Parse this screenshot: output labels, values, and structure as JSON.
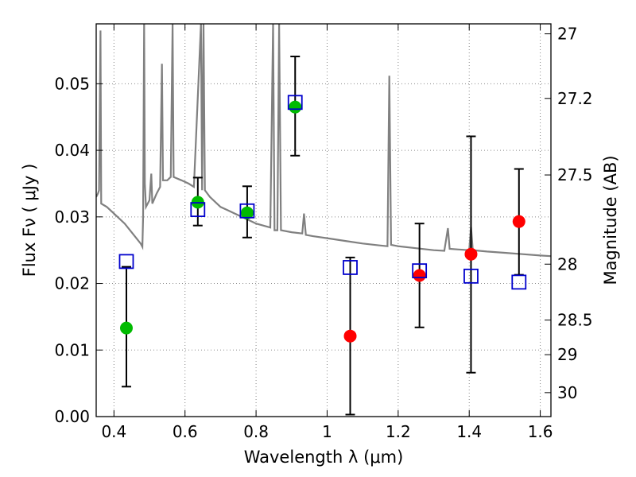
{
  "chart_data": {
    "type": "scatter",
    "title": "",
    "xlabel": "Wavelength  λ (μm)",
    "ylabel": "Flux  Fν  ( μJy )",
    "ylabel_right": "Magnitude (AB)",
    "xlim": [
      0.35,
      1.63
    ],
    "ylim": [
      0.0,
      0.059
    ],
    "grid": true,
    "x_ticks": [
      0.4,
      0.6,
      0.8,
      1.0,
      1.2,
      1.4,
      1.6
    ],
    "x_tick_labels": [
      "0.4",
      "0.6",
      "0.8",
      "1",
      "1.2",
      "1.4",
      "1.6"
    ],
    "y_ticks": [
      0.0,
      0.01,
      0.02,
      0.03,
      0.04,
      0.05
    ],
    "y_tick_labels": [
      "0.00",
      "0.01",
      "0.02",
      "0.03",
      "0.04",
      "0.05"
    ],
    "right_ticks": [
      {
        "label": "27",
        "flux": 0.0575
      },
      {
        "label": "27.2",
        "flux": 0.0478
      },
      {
        "label": "27.5",
        "flux": 0.0363
      },
      {
        "label": "28",
        "flux": 0.0229
      },
      {
        "label": "28.5",
        "flux": 0.0145
      },
      {
        "label": "29",
        "flux": 0.0093
      },
      {
        "label": "30",
        "flux": 0.0036
      }
    ],
    "series": [
      {
        "marker": "circle",
        "color": "#00bb00",
        "points": [
          {
            "x": 0.435,
            "y": 0.0133,
            "err_low": 0.0045,
            "err_high": 0.0225
          },
          {
            "x": 0.636,
            "y": 0.0322,
            "err_low": 0.0287,
            "err_high": 0.0359
          },
          {
            "x": 0.775,
            "y": 0.0306,
            "err_low": 0.0269,
            "err_high": 0.0346
          },
          {
            "x": 0.91,
            "y": 0.0465,
            "err_low": 0.0392,
            "err_high": 0.0541
          }
        ]
      },
      {
        "marker": "circle",
        "color": "#ff0000",
        "points": [
          {
            "x": 1.065,
            "y": 0.0121,
            "err_low": 0.0003,
            "err_high": 0.0239
          },
          {
            "x": 1.26,
            "y": 0.0212,
            "err_low": 0.0134,
            "err_high": 0.029
          },
          {
            "x": 1.405,
            "y": 0.0244,
            "err_low": 0.0066,
            "err_high": 0.0421
          },
          {
            "x": 1.54,
            "y": 0.0293,
            "err_low": 0.0213,
            "err_high": 0.0372
          }
        ]
      },
      {
        "marker": "open-square",
        "color": "#0000cc",
        "points": [
          {
            "x": 0.435,
            "y": 0.0233
          },
          {
            "x": 0.636,
            "y": 0.0311
          },
          {
            "x": 0.775,
            "y": 0.0309
          },
          {
            "x": 0.91,
            "y": 0.0472
          },
          {
            "x": 1.065,
            "y": 0.0224
          },
          {
            "x": 1.26,
            "y": 0.0219
          },
          {
            "x": 1.405,
            "y": 0.0211
          },
          {
            "x": 1.54,
            "y": 0.0202
          }
        ]
      }
    ],
    "spectrum": {
      "color": "#808080",
      "points": [
        [
          0.35,
          0.033
        ],
        [
          0.355,
          0.0335
        ],
        [
          0.358,
          0.034
        ],
        [
          0.362,
          0.058
        ],
        [
          0.364,
          0.032
        ],
        [
          0.38,
          0.0315
        ],
        [
          0.4,
          0.0305
        ],
        [
          0.43,
          0.029
        ],
        [
          0.46,
          0.027
        ],
        [
          0.475,
          0.026
        ],
        [
          0.48,
          0.0255
        ],
        [
          0.482,
          0.03
        ],
        [
          0.485,
          0.059
        ],
        [
          0.487,
          0.035
        ],
        [
          0.49,
          0.0315
        ],
        [
          0.5,
          0.0325
        ],
        [
          0.505,
          0.0365
        ],
        [
          0.508,
          0.032
        ],
        [
          0.52,
          0.0335
        ],
        [
          0.53,
          0.0345
        ],
        [
          0.535,
          0.053
        ],
        [
          0.538,
          0.0355
        ],
        [
          0.55,
          0.0355
        ],
        [
          0.56,
          0.036
        ],
        [
          0.565,
          0.059
        ],
        [
          0.568,
          0.036
        ],
        [
          0.59,
          0.0355
        ],
        [
          0.61,
          0.035
        ],
        [
          0.625,
          0.0345
        ],
        [
          0.645,
          0.059
        ],
        [
          0.648,
          0.034
        ],
        [
          0.652,
          0.059
        ],
        [
          0.656,
          0.034
        ],
        [
          0.67,
          0.033
        ],
        [
          0.69,
          0.032
        ],
        [
          0.7,
          0.0315
        ],
        [
          0.72,
          0.031
        ],
        [
          0.74,
          0.0305
        ],
        [
          0.76,
          0.03
        ],
        [
          0.78,
          0.0295
        ],
        [
          0.8,
          0.029
        ],
        [
          0.82,
          0.0287
        ],
        [
          0.84,
          0.0284
        ],
        [
          0.848,
          0.059
        ],
        [
          0.852,
          0.028
        ],
        [
          0.86,
          0.028
        ],
        [
          0.865,
          0.059
        ],
        [
          0.87,
          0.028
        ],
        [
          0.9,
          0.0277
        ],
        [
          0.93,
          0.0275
        ],
        [
          0.935,
          0.0305
        ],
        [
          0.94,
          0.0273
        ],
        [
          0.96,
          0.0271
        ],
        [
          1.0,
          0.0268
        ],
        [
          1.05,
          0.0264
        ],
        [
          1.1,
          0.026
        ],
        [
          1.15,
          0.0257
        ],
        [
          1.17,
          0.0256
        ],
        [
          1.175,
          0.0512
        ],
        [
          1.18,
          0.0258
        ],
        [
          1.2,
          0.0256
        ],
        [
          1.25,
          0.0253
        ],
        [
          1.3,
          0.025
        ],
        [
          1.33,
          0.0249
        ],
        [
          1.34,
          0.0283
        ],
        [
          1.345,
          0.0252
        ],
        [
          1.37,
          0.0251
        ],
        [
          1.4,
          0.025
        ],
        [
          1.405,
          0.0285
        ],
        [
          1.41,
          0.025
        ],
        [
          1.45,
          0.0248
        ],
        [
          1.5,
          0.0246
        ],
        [
          1.55,
          0.0244
        ],
        [
          1.6,
          0.0242
        ],
        [
          1.63,
          0.0241
        ]
      ]
    }
  }
}
